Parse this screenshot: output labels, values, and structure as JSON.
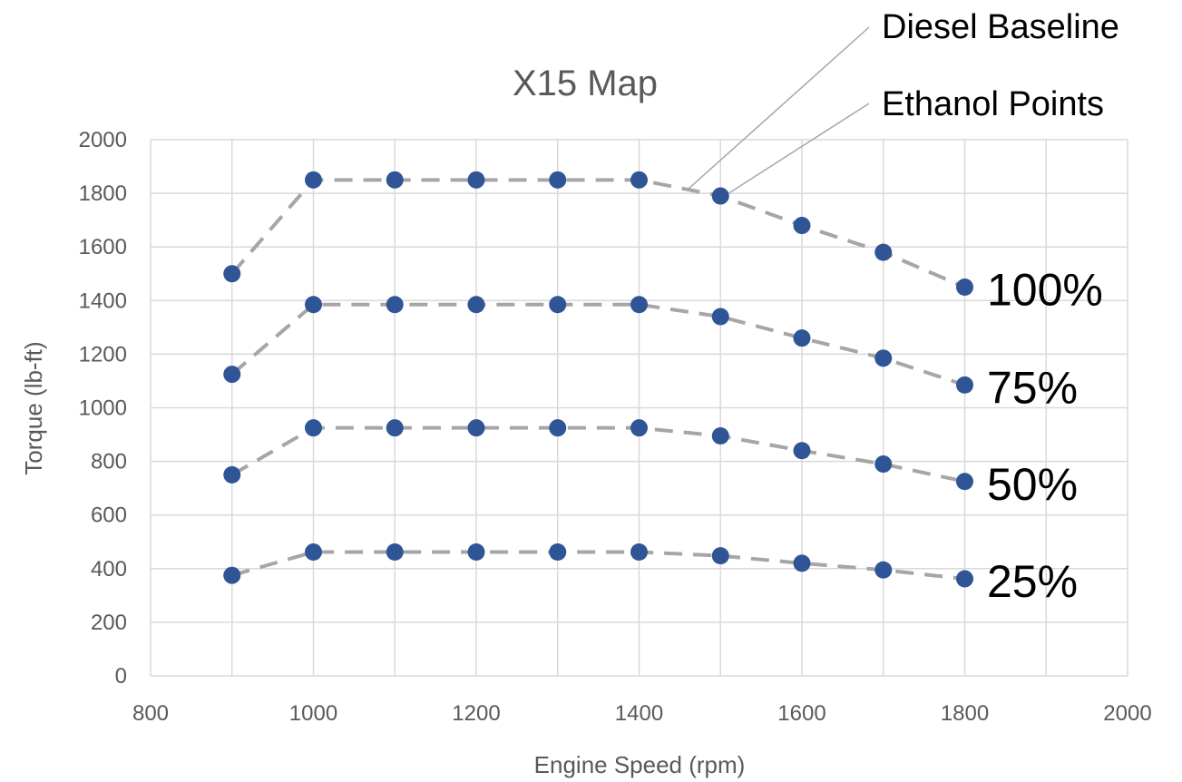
{
  "chart_data": {
    "type": "scatter",
    "title": "X15 Map",
    "xlabel": "Engine Speed (rpm)",
    "ylabel": "Torque (lb-ft)",
    "xlim": [
      800,
      2000
    ],
    "ylim": [
      0,
      2000
    ],
    "x_ticks": [
      800,
      1000,
      1200,
      1400,
      1600,
      1800,
      2000
    ],
    "y_ticks": [
      0,
      200,
      400,
      600,
      800,
      1000,
      1200,
      1400,
      1600,
      1800,
      2000
    ],
    "grid": true,
    "colors": {
      "ethanol_points": "#2f5597",
      "diesel_baseline": "#a6a6a6"
    },
    "annotations": [
      {
        "id": "diesel",
        "text": "Diesel Baseline",
        "anchor_point": [
          1460,
          1815
        ]
      },
      {
        "id": "ethanol",
        "text": "Ethanol Points",
        "anchor_point": [
          1510,
          1800
        ]
      }
    ],
    "baseline_series": [
      {
        "x": [
          900,
          1000,
          1100,
          1200,
          1300,
          1400,
          1500,
          1600,
          1700,
          1800
        ],
        "y": [
          1500,
          1850,
          1850,
          1850,
          1850,
          1850,
          1790,
          1680,
          1580,
          1450
        ]
      },
      {
        "x": [
          900,
          1000,
          1100,
          1200,
          1300,
          1400,
          1500,
          1600,
          1700,
          1800
        ],
        "y": [
          1125,
          1385,
          1385,
          1385,
          1385,
          1385,
          1340,
          1260,
          1185,
          1085
        ]
      },
      {
        "x": [
          900,
          1000,
          1100,
          1200,
          1300,
          1400,
          1500,
          1600,
          1700,
          1800
        ],
        "y": [
          750,
          925,
          925,
          925,
          925,
          925,
          895,
          840,
          790,
          725
        ]
      },
      {
        "x": [
          900,
          1000,
          1100,
          1200,
          1300,
          1400,
          1500,
          1600,
          1700,
          1800
        ],
        "y": [
          375,
          462,
          462,
          462,
          462,
          462,
          448,
          420,
          395,
          362
        ]
      }
    ],
    "series": [
      {
        "label": "100%",
        "x": [
          900,
          1000,
          1100,
          1200,
          1300,
          1400,
          1500,
          1600,
          1700,
          1800
        ],
        "y": [
          1500,
          1850,
          1850,
          1850,
          1850,
          1850,
          1790,
          1680,
          1580,
          1450
        ]
      },
      {
        "label": "75%",
        "x": [
          900,
          1000,
          1100,
          1200,
          1300,
          1400,
          1500,
          1600,
          1700,
          1800
        ],
        "y": [
          1125,
          1385,
          1385,
          1385,
          1385,
          1385,
          1340,
          1260,
          1185,
          1085
        ]
      },
      {
        "label": "50%",
        "x": [
          900,
          1000,
          1100,
          1200,
          1300,
          1400,
          1500,
          1600,
          1700,
          1800
        ],
        "y": [
          750,
          925,
          925,
          925,
          925,
          925,
          895,
          840,
          790,
          725
        ]
      },
      {
        "label": "25%",
        "x": [
          900,
          1000,
          1100,
          1200,
          1300,
          1400,
          1500,
          1600,
          1700,
          1800
        ],
        "y": [
          375,
          462,
          462,
          462,
          462,
          462,
          448,
          420,
          395,
          362
        ]
      }
    ]
  }
}
